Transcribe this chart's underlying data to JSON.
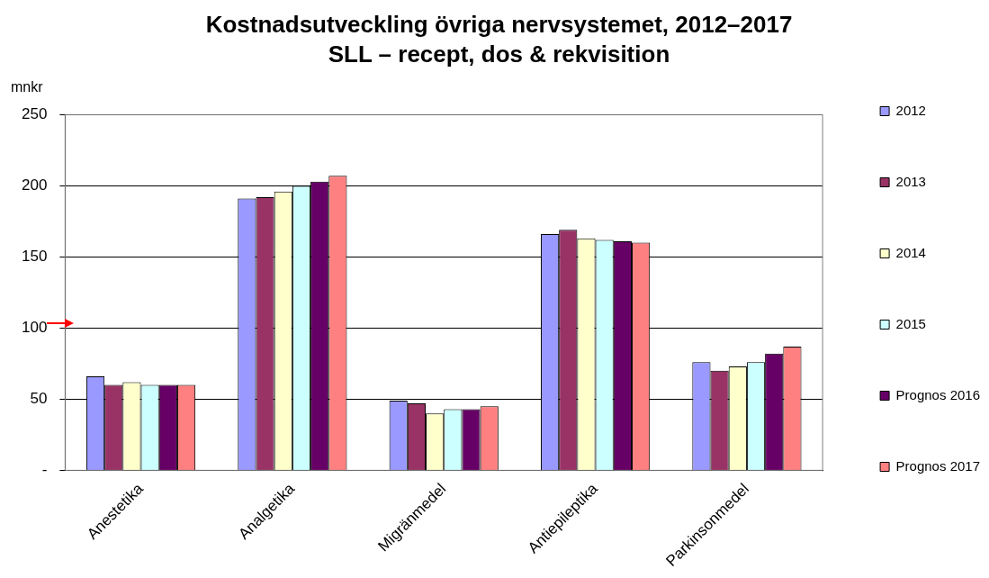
{
  "chart_data": {
    "type": "bar",
    "title": "Kostnadsutveckling övriga nervsystemet, 2012–2017",
    "subtitle": "SLL – recept, dos & rekvisition",
    "ylabel": "mnkr",
    "categories": [
      "Anestetika",
      "Analgetika",
      "Migränmedel",
      "Antiepileptika",
      "Parkinsonmedel"
    ],
    "series": [
      {
        "name": "2012",
        "color": "#9999ff",
        "values": [
          66,
          191,
          49,
          166,
          76
        ]
      },
      {
        "name": "2013",
        "color": "#993366",
        "values": [
          60,
          192,
          47,
          169,
          70
        ]
      },
      {
        "name": "2014",
        "color": "#ffffcc",
        "values": [
          62,
          196,
          40,
          163,
          73
        ]
      },
      {
        "name": "2015",
        "color": "#ccffff",
        "values": [
          60,
          200,
          43,
          162,
          76
        ]
      },
      {
        "name": "Prognos 2016",
        "color": "#660066",
        "values": [
          60,
          203,
          43,
          161,
          82
        ]
      },
      {
        "name": "Prognos 2017",
        "color": "#ff8080",
        "values": [
          60,
          207,
          45,
          160,
          87
        ]
      }
    ],
    "ylim": [
      0,
      250
    ],
    "yticks": [
      {
        "value": 0,
        "label": "-"
      },
      50,
      100,
      150,
      200,
      250
    ],
    "grid": "y",
    "legend": "right"
  }
}
